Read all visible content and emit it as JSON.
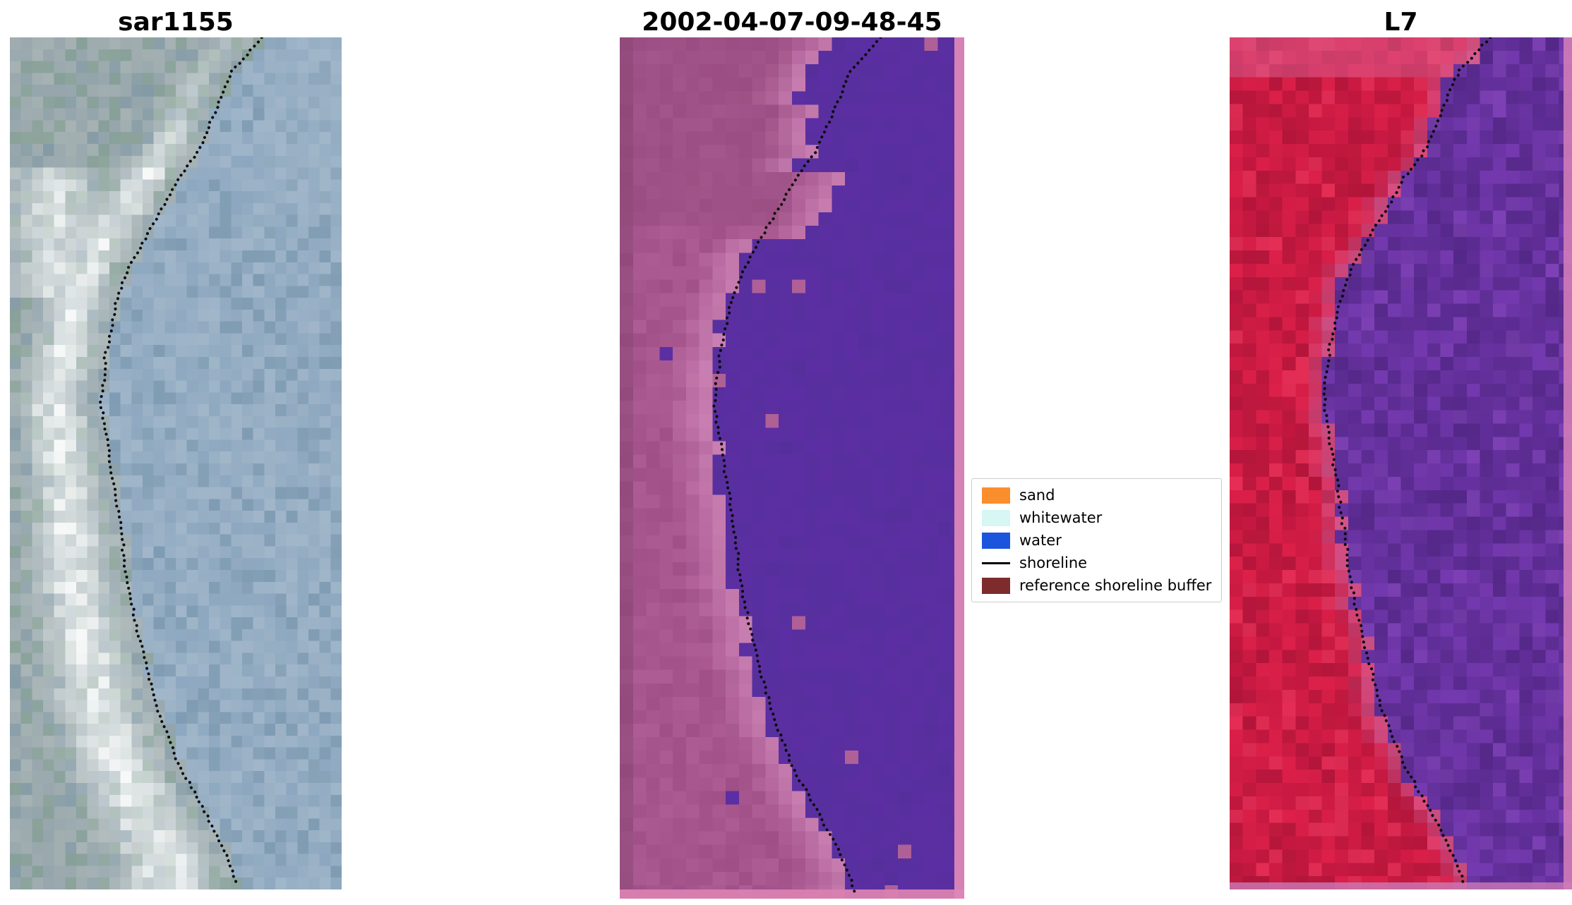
{
  "figure": {
    "background": "#ffffff",
    "panels": [
      {
        "title": "sar1155",
        "kind": "sar-image",
        "palette": {
          "water_light": "#a1b6c9",
          "water": "#8ca7bf",
          "water_dark": "#7392a9",
          "land": "#93a4ab",
          "land_green": "#7e9c8d",
          "land_slate": "#74909f",
          "surf_white": "#f7f9f8"
        }
      },
      {
        "title": "2002-04-07-09-48-45",
        "kind": "classified-image",
        "palette": {
          "water_purple": "#5c2ea3",
          "land_pink": "#a04f87",
          "land_dark": "#8f4a79",
          "beach_light": "#d189bb",
          "edge_strip": "#dd87b7"
        }
      },
      {
        "title": "L7",
        "kind": "rgb-image",
        "palette": {
          "water_purple": "#7439af",
          "water_dark": "#5a2b90",
          "land_red": "#dc2049",
          "land_dark": "#a81336",
          "beach_pink": "#cf6ca8",
          "edge_strip": "#cf7cb8"
        }
      }
    ],
    "legend": {
      "items": [
        {
          "label": "sand",
          "swatch": "#fb8e2c",
          "kind": "patch"
        },
        {
          "label": "whitewater",
          "swatch": "#d6f7f3",
          "kind": "patch"
        },
        {
          "label": "water",
          "swatch": "#1b55dd",
          "kind": "patch"
        },
        {
          "label": "shoreline",
          "swatch": "#000000",
          "kind": "line"
        },
        {
          "label": "reference shoreline buffer",
          "swatch": "#7d2b2b",
          "kind": "patch"
        }
      ]
    }
  },
  "chart_data": {
    "type": "heatmap",
    "title": "",
    "panel_titles": [
      "sar1155",
      "2002-04-07-09-48-45",
      "L7"
    ],
    "legend_entries": [
      "sand",
      "whitewater",
      "water",
      "shoreline",
      "reference shoreline buffer"
    ],
    "shoreline_norm": [
      [
        0.0,
        0.76
      ],
      [
        0.04,
        0.67
      ],
      [
        0.09,
        0.615
      ],
      [
        0.13,
        0.575
      ],
      [
        0.17,
        0.5
      ],
      [
        0.2,
        0.46
      ],
      [
        0.23,
        0.415
      ],
      [
        0.27,
        0.36
      ],
      [
        0.31,
        0.32
      ],
      [
        0.37,
        0.29
      ],
      [
        0.43,
        0.275
      ],
      [
        0.49,
        0.3
      ],
      [
        0.54,
        0.32
      ],
      [
        0.58,
        0.335
      ],
      [
        0.63,
        0.35
      ],
      [
        0.68,
        0.375
      ],
      [
        0.73,
        0.405
      ],
      [
        0.79,
        0.445
      ],
      [
        0.85,
        0.505
      ],
      [
        0.9,
        0.575
      ],
      [
        0.96,
        0.655
      ],
      [
        1.0,
        0.69
      ]
    ]
  }
}
